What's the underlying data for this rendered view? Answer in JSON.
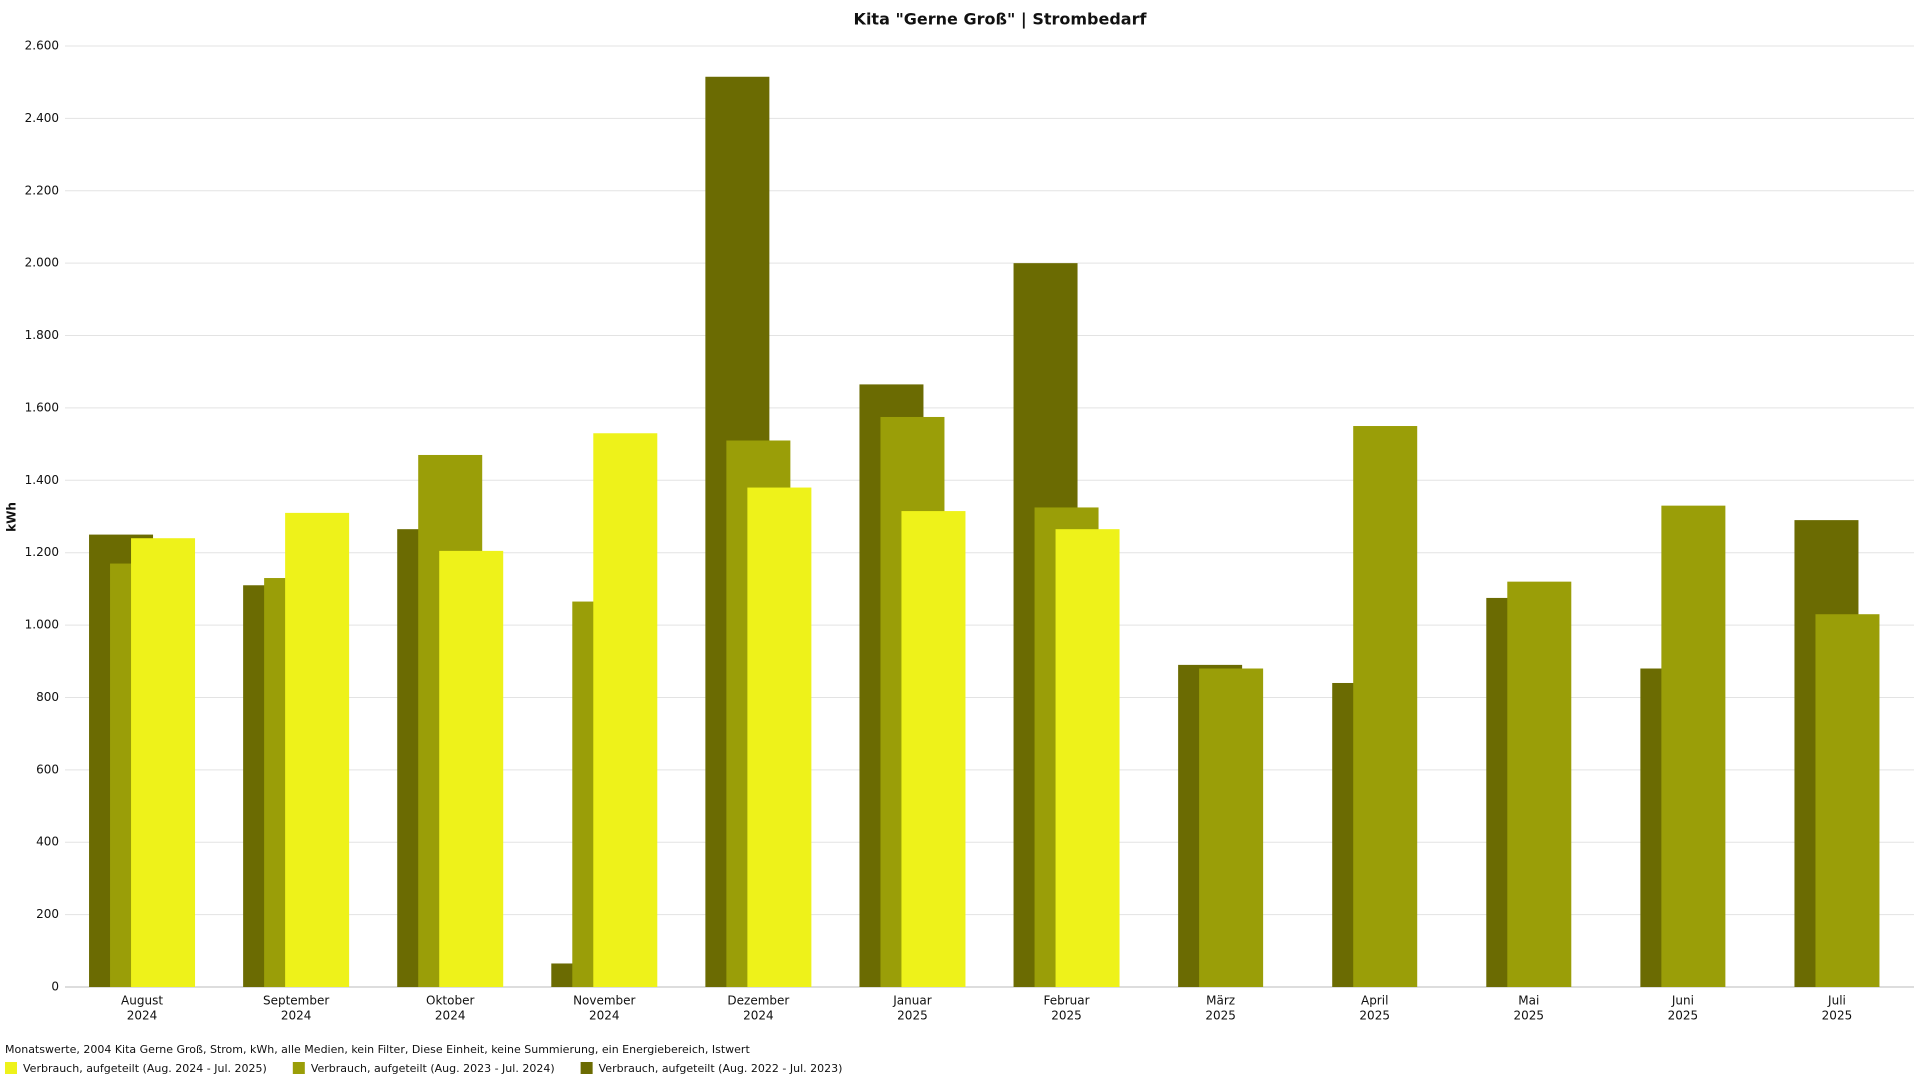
{
  "chart_data": {
    "type": "bar",
    "title": "Kita \"Gerne Groß\" | Strombedarf",
    "y_label": "kWh",
    "footnote": "Monatswerte, 2004 Kita Gerne Groß, Strom, kWh, alle Medien, kein Filter, Diese Einheit, keine Summierung, ein Energiebereich, Istwert",
    "categories": [
      [
        "August",
        "2024"
      ],
      [
        "September",
        "2024"
      ],
      [
        "Oktober",
        "2024"
      ],
      [
        "November",
        "2024"
      ],
      [
        "Dezember",
        "2024"
      ],
      [
        "Januar",
        "2025"
      ],
      [
        "Februar",
        "2025"
      ],
      [
        "März",
        "2025"
      ],
      [
        "April",
        "2025"
      ],
      [
        "Mai",
        "2025"
      ],
      [
        "Juni",
        "2025"
      ],
      [
        "Juli",
        "2025"
      ]
    ],
    "series": [
      {
        "name": "Verbrauch, aufgeteilt (Aug. 2024 - Jul. 2025)",
        "color": "#eef21a",
        "values": [
          1240,
          1310,
          1205,
          1530,
          1380,
          1315,
          1265,
          null,
          null,
          null,
          null,
          null
        ]
      },
      {
        "name": "Verbrauch, aufgeteilt (Aug. 2023 - Jul. 2024)",
        "color": "#9a9e08",
        "values": [
          1170,
          1130,
          1470,
          1065,
          1510,
          1575,
          1325,
          880,
          1550,
          1120,
          1330,
          1030
        ]
      },
      {
        "name": "Verbrauch, aufgeteilt (Aug. 2022 - Jul. 2023)",
        "color": "#6b6b02",
        "values": [
          1250,
          1110,
          1265,
          65,
          2515,
          1665,
          2000,
          890,
          840,
          1075,
          880,
          1290
        ]
      }
    ],
    "ylim": [
      0,
      2600
    ],
    "yticks": [
      0,
      200,
      400,
      600,
      800,
      {
        "value": 1000,
        "label": "1.000"
      },
      {
        "value": 1200,
        "label": "1.200"
      },
      {
        "value": 1400,
        "label": "1.400"
      },
      {
        "value": 1600,
        "label": "1.600"
      },
      {
        "value": 1800,
        "label": "1.800"
      },
      {
        "value": 2000,
        "label": "2.000"
      },
      {
        "value": 2200,
        "label": "2.200"
      },
      {
        "value": 2400,
        "label": "2.400"
      },
      {
        "value": 2600,
        "label": "2.600"
      }
    ],
    "grid": true
  }
}
